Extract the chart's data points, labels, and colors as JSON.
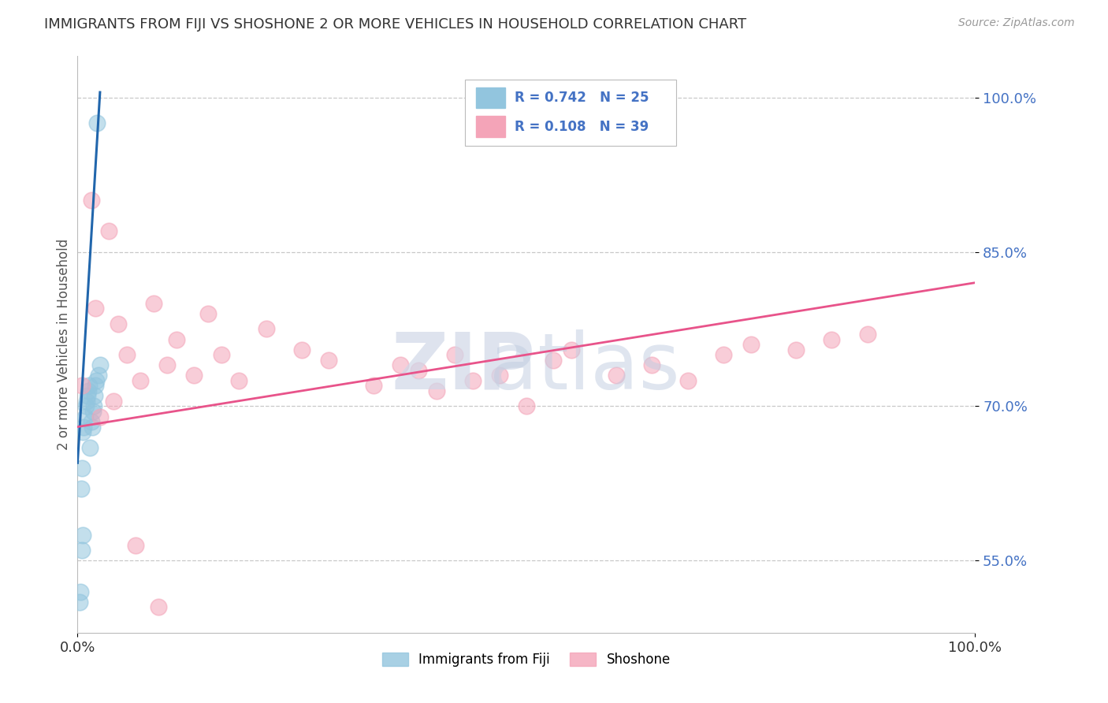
{
  "title": "IMMIGRANTS FROM FIJI VS SHOSHONE 2 OR MORE VEHICLES IN HOUSEHOLD CORRELATION CHART",
  "source": "Source: ZipAtlas.com",
  "ylabel": "2 or more Vehicles in Household",
  "xlim": [
    0.0,
    100.0
  ],
  "ylim": [
    48.0,
    104.0
  ],
  "ytick_labels": [
    "55.0%",
    "70.0%",
    "85.0%",
    "100.0%"
  ],
  "ytick_values": [
    55.0,
    70.0,
    85.0,
    100.0
  ],
  "r_fiji": 0.742,
  "n_fiji": 25,
  "r_shoshone": 0.108,
  "n_shoshone": 39,
  "color_fiji": "#92c5de",
  "color_shoshone": "#f4a4b8",
  "color_fiji_line": "#2166ac",
  "color_shoshone_line": "#e8538a",
  "background_color": "#ffffff",
  "grid_color": "#c8c8c8",
  "title_color": "#333333",
  "source_color": "#999999",
  "tick_color_y": "#4472c4",
  "tick_color_x": "#333333",
  "fiji_x": [
    0.2,
    0.3,
    0.4,
    0.5,
    0.6,
    0.7,
    0.8,
    0.9,
    1.0,
    1.1,
    1.2,
    1.3,
    1.4,
    1.5,
    1.6,
    1.7,
    1.8,
    1.9,
    2.0,
    2.1,
    2.3,
    2.5,
    0.5,
    0.6,
    2.2
  ],
  "fiji_y": [
    51.0,
    52.0,
    62.0,
    64.0,
    67.5,
    68.0,
    69.0,
    70.0,
    70.5,
    71.0,
    71.5,
    72.0,
    66.0,
    68.5,
    68.0,
    69.5,
    70.0,
    71.0,
    72.0,
    72.5,
    73.0,
    74.0,
    56.0,
    57.5,
    97.5
  ],
  "shoshone_x": [
    0.5,
    1.5,
    2.0,
    3.5,
    4.5,
    5.5,
    7.0,
    8.5,
    10.0,
    11.0,
    13.0,
    14.5,
    16.0,
    18.0,
    21.0,
    25.0,
    28.0,
    33.0,
    36.0,
    38.0,
    40.0,
    42.0,
    44.0,
    47.0,
    50.0,
    53.0,
    55.0,
    60.0,
    64.0,
    68.0,
    72.0,
    75.0,
    80.0,
    84.0,
    88.0,
    2.5,
    4.0,
    6.5,
    9.0
  ],
  "shoshone_y": [
    72.0,
    90.0,
    79.5,
    87.0,
    78.0,
    75.0,
    72.5,
    80.0,
    74.0,
    76.5,
    73.0,
    79.0,
    75.0,
    72.5,
    77.5,
    75.5,
    74.5,
    72.0,
    74.0,
    73.5,
    71.5,
    75.0,
    72.5,
    73.0,
    70.0,
    74.5,
    75.5,
    73.0,
    74.0,
    72.5,
    75.0,
    76.0,
    75.5,
    76.5,
    77.0,
    69.0,
    70.5,
    56.5,
    50.5
  ],
  "fiji_line_x": [
    0.0,
    2.5
  ],
  "fiji_line_y_from": 64.5,
  "fiji_line_y_to": 100.5,
  "shoshone_line_x0": 0.0,
  "shoshone_line_x1": 100.0,
  "shoshone_line_y0": 68.0,
  "shoshone_line_y1": 82.0
}
